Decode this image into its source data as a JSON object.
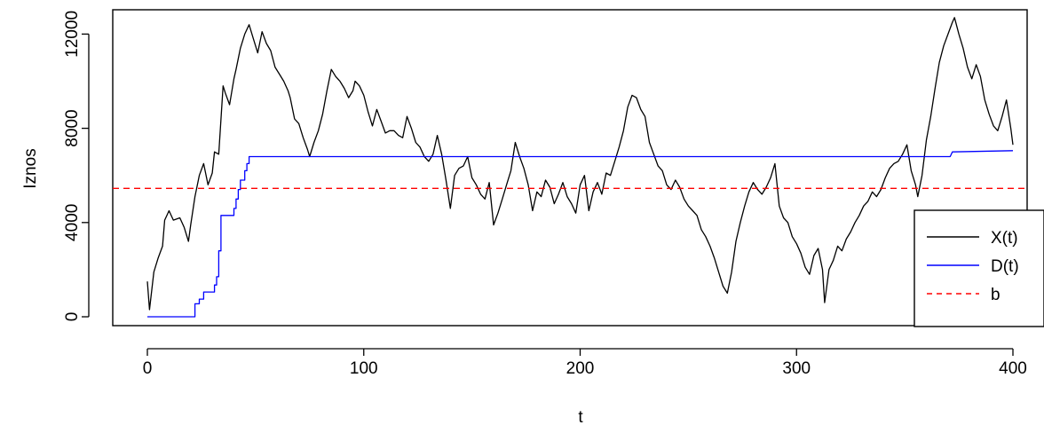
{
  "chart_data": {
    "type": "line",
    "title": "",
    "xlabel": "t",
    "ylabel": "Iznos",
    "xlim": [
      0,
      400
    ],
    "ylim": [
      0,
      12600
    ],
    "x_ticks": [
      "0",
      "100",
      "200",
      "300",
      "400"
    ],
    "y_ticks": [
      "0",
      "4000",
      "8000",
      "12000"
    ],
    "grid": false,
    "legend_position": "bottom-right",
    "series": [
      {
        "name": "X(t)",
        "color": "#000000",
        "linestyle": "solid",
        "points": [
          [
            0,
            1500
          ],
          [
            1,
            300
          ],
          [
            3,
            1900
          ],
          [
            5,
            2500
          ],
          [
            7,
            3000
          ],
          [
            8,
            4100
          ],
          [
            10,
            4500
          ],
          [
            12,
            4100
          ],
          [
            15,
            4200
          ],
          [
            17,
            3800
          ],
          [
            19,
            3200
          ],
          [
            20,
            3900
          ],
          [
            22,
            5100
          ],
          [
            24,
            6000
          ],
          [
            26,
            6500
          ],
          [
            28,
            5600
          ],
          [
            30,
            6100
          ],
          [
            31,
            7000
          ],
          [
            33,
            6900
          ],
          [
            35,
            9800
          ],
          [
            36,
            9500
          ],
          [
            38,
            9000
          ],
          [
            40,
            10100
          ],
          [
            41,
            10500
          ],
          [
            43,
            11400
          ],
          [
            45,
            12000
          ],
          [
            47,
            12400
          ],
          [
            49,
            11800
          ],
          [
            51,
            11200
          ],
          [
            53,
            12100
          ],
          [
            55,
            11600
          ],
          [
            57,
            11300
          ],
          [
            59,
            10600
          ],
          [
            61,
            10300
          ],
          [
            63,
            10000
          ],
          [
            65,
            9600
          ],
          [
            66,
            9300
          ],
          [
            68,
            8400
          ],
          [
            70,
            8200
          ],
          [
            72,
            7600
          ],
          [
            74,
            7100
          ],
          [
            75,
            6800
          ],
          [
            77,
            7400
          ],
          [
            79,
            7900
          ],
          [
            81,
            8600
          ],
          [
            83,
            9600
          ],
          [
            85,
            10500
          ],
          [
            87,
            10200
          ],
          [
            89,
            10000
          ],
          [
            91,
            9700
          ],
          [
            93,
            9300
          ],
          [
            95,
            9600
          ],
          [
            96,
            10000
          ],
          [
            98,
            9800
          ],
          [
            100,
            9400
          ],
          [
            102,
            8700
          ],
          [
            104,
            8100
          ],
          [
            106,
            8800
          ],
          [
            108,
            8300
          ],
          [
            110,
            7800
          ],
          [
            112,
            7900
          ],
          [
            114,
            7900
          ],
          [
            116,
            7700
          ],
          [
            118,
            7600
          ],
          [
            120,
            8500
          ],
          [
            122,
            8000
          ],
          [
            124,
            7400
          ],
          [
            126,
            7200
          ],
          [
            128,
            6800
          ],
          [
            130,
            6600
          ],
          [
            132,
            6900
          ],
          [
            134,
            7700
          ],
          [
            136,
            6900
          ],
          [
            138,
            5800
          ],
          [
            140,
            4600
          ],
          [
            142,
            6000
          ],
          [
            144,
            6300
          ],
          [
            146,
            6400
          ],
          [
            148,
            6800
          ],
          [
            150,
            5900
          ],
          [
            152,
            5600
          ],
          [
            154,
            5200
          ],
          [
            156,
            5000
          ],
          [
            158,
            5700
          ],
          [
            160,
            3900
          ],
          [
            162,
            4400
          ],
          [
            164,
            5000
          ],
          [
            166,
            5600
          ],
          [
            168,
            6200
          ],
          [
            170,
            7400
          ],
          [
            172,
            6800
          ],
          [
            174,
            6300
          ],
          [
            176,
            5600
          ],
          [
            178,
            4500
          ],
          [
            180,
            5300
          ],
          [
            182,
            5100
          ],
          [
            184,
            5800
          ],
          [
            186,
            5500
          ],
          [
            188,
            4800
          ],
          [
            190,
            5200
          ],
          [
            192,
            5700
          ],
          [
            194,
            5100
          ],
          [
            196,
            4800
          ],
          [
            198,
            4400
          ],
          [
            200,
            5600
          ],
          [
            202,
            6000
          ],
          [
            204,
            4500
          ],
          [
            206,
            5300
          ],
          [
            208,
            5700
          ],
          [
            210,
            5200
          ],
          [
            212,
            6100
          ],
          [
            214,
            6000
          ],
          [
            216,
            6600
          ],
          [
            218,
            7200
          ],
          [
            220,
            7900
          ],
          [
            222,
            8900
          ],
          [
            224,
            9400
          ],
          [
            226,
            9300
          ],
          [
            228,
            8800
          ],
          [
            230,
            8500
          ],
          [
            232,
            7400
          ],
          [
            234,
            6900
          ],
          [
            236,
            6400
          ],
          [
            238,
            6200
          ],
          [
            240,
            5600
          ],
          [
            242,
            5400
          ],
          [
            244,
            5800
          ],
          [
            246,
            5500
          ],
          [
            248,
            5000
          ],
          [
            250,
            4700
          ],
          [
            252,
            4500
          ],
          [
            254,
            4300
          ],
          [
            256,
            3700
          ],
          [
            258,
            3400
          ],
          [
            260,
            3000
          ],
          [
            262,
            2500
          ],
          [
            264,
            1900
          ],
          [
            266,
            1300
          ],
          [
            268,
            1000
          ],
          [
            270,
            1900
          ],
          [
            272,
            3200
          ],
          [
            274,
            4000
          ],
          [
            276,
            4700
          ],
          [
            278,
            5300
          ],
          [
            280,
            5700
          ],
          [
            282,
            5400
          ],
          [
            284,
            5200
          ],
          [
            286,
            5500
          ],
          [
            288,
            5900
          ],
          [
            290,
            6500
          ],
          [
            292,
            4700
          ],
          [
            294,
            4200
          ],
          [
            296,
            4000
          ],
          [
            298,
            3400
          ],
          [
            300,
            3100
          ],
          [
            302,
            2700
          ],
          [
            304,
            2100
          ],
          [
            306,
            1800
          ],
          [
            308,
            2600
          ],
          [
            310,
            2900
          ],
          [
            312,
            2000
          ],
          [
            313,
            600
          ],
          [
            315,
            2000
          ],
          [
            317,
            2400
          ],
          [
            319,
            3000
          ],
          [
            321,
            2800
          ],
          [
            323,
            3300
          ],
          [
            325,
            3600
          ],
          [
            327,
            4000
          ],
          [
            329,
            4300
          ],
          [
            331,
            4700
          ],
          [
            333,
            4900
          ],
          [
            335,
            5300
          ],
          [
            337,
            5100
          ],
          [
            339,
            5400
          ],
          [
            341,
            5900
          ],
          [
            343,
            6300
          ],
          [
            345,
            6500
          ],
          [
            347,
            6600
          ],
          [
            349,
            6900
          ],
          [
            351,
            7300
          ],
          [
            353,
            6200
          ],
          [
            355,
            5600
          ],
          [
            356,
            5100
          ],
          [
            358,
            6000
          ],
          [
            360,
            7500
          ],
          [
            362,
            8500
          ],
          [
            364,
            9700
          ],
          [
            366,
            10800
          ],
          [
            368,
            11500
          ],
          [
            370,
            12000
          ],
          [
            372,
            12500
          ],
          [
            373,
            12700
          ],
          [
            375,
            12000
          ],
          [
            377,
            11400
          ],
          [
            379,
            10600
          ],
          [
            381,
            10100
          ],
          [
            383,
            10700
          ],
          [
            385,
            10200
          ],
          [
            387,
            9200
          ],
          [
            389,
            8600
          ],
          [
            391,
            8100
          ],
          [
            393,
            7900
          ],
          [
            395,
            8500
          ],
          [
            397,
            9200
          ],
          [
            399,
            8000
          ],
          [
            400,
            7300
          ]
        ]
      },
      {
        "name": "D(t)",
        "color": "#0000ff",
        "linestyle": "solid",
        "points": [
          [
            0,
            0
          ],
          [
            22,
            0
          ],
          [
            22,
            550
          ],
          [
            24,
            550
          ],
          [
            24,
            750
          ],
          [
            26,
            750
          ],
          [
            26,
            1050
          ],
          [
            31,
            1050
          ],
          [
            31,
            1350
          ],
          [
            32,
            1350
          ],
          [
            32,
            1700
          ],
          [
            33,
            1700
          ],
          [
            33,
            2800
          ],
          [
            34,
            2800
          ],
          [
            34,
            4300
          ],
          [
            40,
            4300
          ],
          [
            40,
            4600
          ],
          [
            41,
            4600
          ],
          [
            41,
            5000
          ],
          [
            42,
            5000
          ],
          [
            42,
            5400
          ],
          [
            43,
            5400
          ],
          [
            43,
            5800
          ],
          [
            45,
            5800
          ],
          [
            45,
            6200
          ],
          [
            46,
            6200
          ],
          [
            46,
            6500
          ],
          [
            47,
            6500
          ],
          [
            47,
            6800
          ],
          [
            371,
            6800
          ],
          [
            372,
            7000
          ],
          [
            400,
            7050
          ]
        ]
      },
      {
        "name": "b",
        "color": "#ff0000",
        "linestyle": "dashed",
        "points": [
          [
            -20,
            5450
          ],
          [
            420,
            5450
          ]
        ]
      }
    ]
  }
}
